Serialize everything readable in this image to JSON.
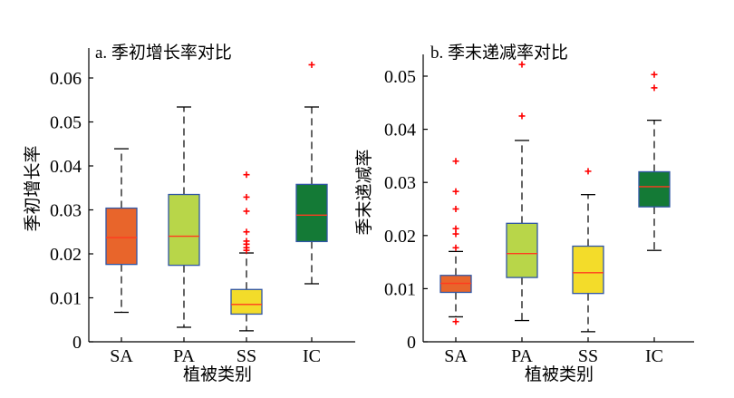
{
  "chart_data": [
    {
      "type": "box",
      "title": "a. 季初增长率对比",
      "xlabel": "植被类别",
      "ylabel": "季初增长率",
      "categories": [
        "SA",
        "PA",
        "SS",
        "IC"
      ],
      "ylim": [
        0,
        0.064
      ],
      "yticks": [
        0,
        0.01,
        0.02,
        0.03,
        0.04,
        0.05,
        0.06
      ],
      "ytick_labels": [
        "0",
        "0.01",
        "0.02",
        "0.03",
        "0.04",
        "0.05",
        "0.06"
      ],
      "grid": false,
      "boxes": [
        {
          "category": "SA",
          "whisker_low": 0.0067,
          "q1": 0.0176,
          "median": 0.0237,
          "q3": 0.0304,
          "whisker_high": 0.0439,
          "outliers": [],
          "color": "#e8652b"
        },
        {
          "category": "PA",
          "whisker_low": 0.0033,
          "q1": 0.0174,
          "median": 0.024,
          "q3": 0.0335,
          "whisker_high": 0.0534,
          "outliers": [],
          "color": "#b8d649"
        },
        {
          "category": "SS",
          "whisker_low": 0.0025,
          "q1": 0.0063,
          "median": 0.0085,
          "q3": 0.0119,
          "whisker_high": 0.0202,
          "outliers": [
            0.0208,
            0.0214,
            0.0222,
            0.0229,
            0.025,
            0.0297,
            0.0329,
            0.038
          ],
          "color": "#f3dc2a"
        },
        {
          "category": "IC",
          "whisker_low": 0.0132,
          "q1": 0.0228,
          "median": 0.0288,
          "q3": 0.0358,
          "whisker_high": 0.0534,
          "outliers": [
            0.063
          ],
          "color": "#147a36"
        }
      ]
    },
    {
      "type": "box",
      "title": "b. 季末递减率对比",
      "xlabel": "植被类别",
      "ylabel": "季末递减率",
      "categories": [
        "SA",
        "PA",
        "SS",
        "IC"
      ],
      "ylim": [
        0,
        0.053
      ],
      "yticks": [
        0,
        0.01,
        0.02,
        0.03,
        0.04,
        0.05
      ],
      "ytick_labels": [
        "0",
        "0.01",
        "0.02",
        "0.03",
        "0.04",
        "0.05"
      ],
      "grid": false,
      "boxes": [
        {
          "category": "SA",
          "whisker_low": 0.0047,
          "q1": 0.0093,
          "median": 0.011,
          "q3": 0.0125,
          "whisker_high": 0.017,
          "outliers": [
            0.0038,
            0.0177,
            0.0203,
            0.0213,
            0.025,
            0.0283,
            0.034
          ],
          "color": "#e8652b"
        },
        {
          "category": "PA",
          "whisker_low": 0.004,
          "q1": 0.0121,
          "median": 0.0166,
          "q3": 0.0223,
          "whisker_high": 0.0379,
          "outliers": [
            0.0425,
            0.0522
          ],
          "color": "#b8d649"
        },
        {
          "category": "SS",
          "whisker_low": 0.0019,
          "q1": 0.0091,
          "median": 0.013,
          "q3": 0.018,
          "whisker_high": 0.0277,
          "outliers": [
            0.0321
          ],
          "color": "#f3dc2a"
        },
        {
          "category": "IC",
          "whisker_low": 0.0172,
          "q1": 0.0254,
          "median": 0.0292,
          "q3": 0.032,
          "whisker_high": 0.0417,
          "outliers": [
            0.0478,
            0.0503
          ],
          "color": "#147a36"
        }
      ]
    }
  ],
  "colors": {
    "box_edge": "#2f55a4",
    "median": "#ff3b1f",
    "outlier": "#ff0000",
    "whisker": "#000000"
  }
}
